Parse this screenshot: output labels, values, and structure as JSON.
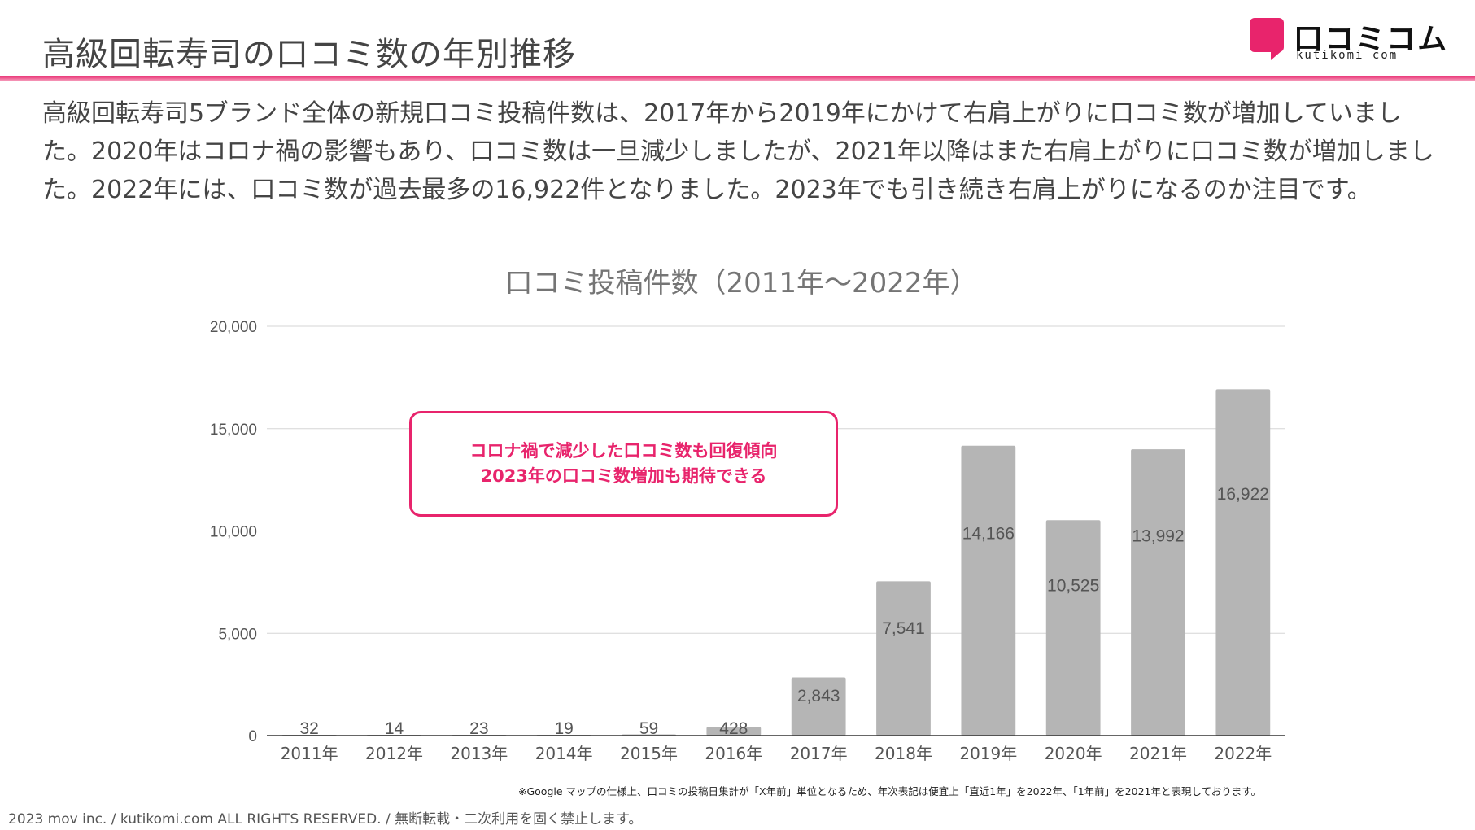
{
  "header": {
    "title": "高級回転寿司の口コミ数の年別推移",
    "logo_text": "口コミコム",
    "logo_sub": "kutikomi com",
    "accent_color": "#e8246c"
  },
  "summary": "高級回転寿司5ブランド全体の新規口コミ投稿件数は、2017年から2019年にかけて右肩上がりに口コミ数が増加していました。2020年はコロナ禍の影響もあり、口コミ数は一旦減少しましたが、2021年以降はまた右肩上がりに口コミ数が増加しました。2022年には、口コミ数が過去最多の16,922件となりました。2023年でも引き続き右肩上がりになるのか注目です。",
  "callout": {
    "line1": "コロナ禍で減少した口コミ数も回復傾向",
    "line2": "2023年の口コミ数増加も期待できる",
    "color": "#e8246c"
  },
  "chart_data": {
    "type": "bar",
    "title": "口コミ投稿件数（2011年〜2022年）",
    "categories": [
      "2011年",
      "2012年",
      "2013年",
      "2014年",
      "2015年",
      "2016年",
      "2017年",
      "2018年",
      "2019年",
      "2020年",
      "2021年",
      "2022年"
    ],
    "values": [
      32,
      14,
      23,
      19,
      59,
      428,
      2843,
      7541,
      14166,
      10525,
      13992,
      16922
    ],
    "value_labels": [
      "32",
      "14",
      "23",
      "19",
      "59",
      "428",
      "2,843",
      "7,541",
      "14,166",
      "10,525",
      "13,992",
      "16,922"
    ],
    "ylim": [
      0,
      20000
    ],
    "yticks": [
      0,
      5000,
      10000,
      15000,
      20000
    ],
    "ytick_labels": [
      "0",
      "5,000",
      "10,000",
      "15,000",
      "20,000"
    ],
    "grid": true,
    "bar_color": "#b5b5b5",
    "xlabel": "",
    "ylabel": ""
  },
  "footnote": "※Google マップの仕様上、口コミの投稿日集計が「X年前」単位となるため、年次表記は便宜上「直近1年」を2022年、「1年前」を2021年と表現しております。",
  "copyright": "2023 mov inc. / kutikomi.com ALL RIGHTS RESERVED. / 無断転載・二次利用を固く禁止します。"
}
